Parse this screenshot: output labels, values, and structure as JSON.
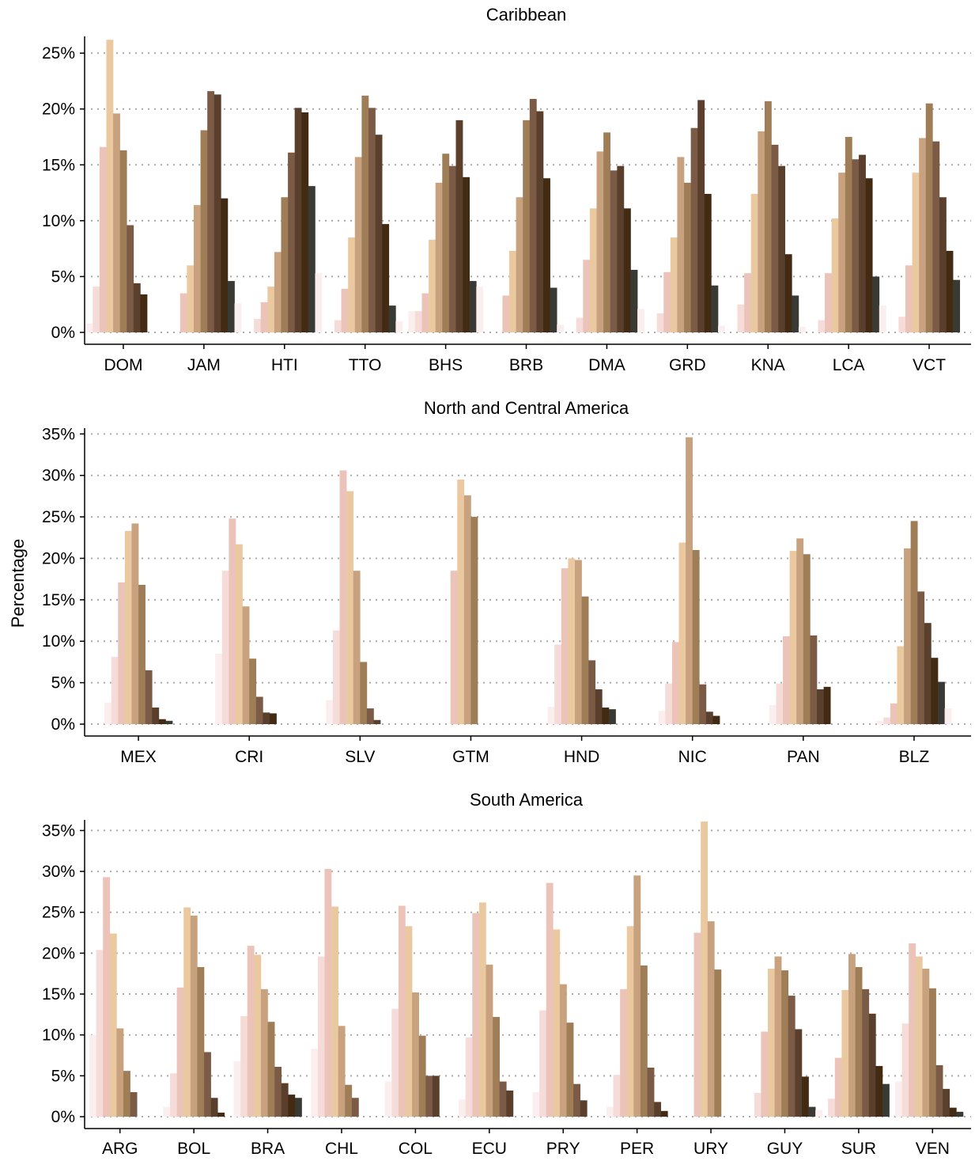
{
  "colors": [
    "#fbeeee",
    "#f6dcd9",
    "#ecc3b8",
    "#ebc9a0",
    "#c8a27e",
    "#9f7d56",
    "#7c5b46",
    "#5a3f2d",
    "#432a12",
    "#3a3a35"
  ],
  "chart_data": {
    "type": "bar",
    "ylabel": "Percentage",
    "grid": true,
    "panels": [
      {
        "title": "Caribbean",
        "ylim": [
          0,
          26.5
        ],
        "yticks": [
          0,
          5,
          10,
          15,
          20,
          25
        ],
        "ytick_labels": [
          "0%",
          "5%",
          "10%",
          "15%",
          "20%",
          "25%"
        ],
        "categories": [
          "DOM",
          "JAM",
          "HTI",
          "TTO",
          "BHS",
          "BRB",
          "DMA",
          "GRD",
          "KNA",
          "LCA",
          "VCT"
        ],
        "values": [
          [
            0.8,
            4.1,
            16.6,
            26.2,
            19.6,
            16.3,
            9.6,
            4.4,
            3.4,
            0,
            0
          ],
          [
            0,
            0,
            3.5,
            6.0,
            11.4,
            18.1,
            21.6,
            21.3,
            12.0,
            4.6,
            2.6
          ],
          [
            0,
            1.2,
            2.7,
            4.1,
            7.2,
            12.1,
            16.1,
            20.1,
            19.7,
            13.1,
            5.3
          ],
          [
            0,
            1.1,
            3.9,
            8.5,
            15.7,
            21.2,
            20.1,
            17.7,
            9.7,
            2.4,
            1.0
          ],
          [
            1.9,
            1.9,
            3.5,
            8.3,
            13.4,
            16.0,
            14.9,
            19.0,
            13.9,
            4.6,
            4.1
          ],
          [
            0,
            0,
            3.3,
            7.3,
            12.1,
            19.0,
            20.9,
            19.8,
            13.8,
            4.0,
            0.7
          ],
          [
            0,
            1.3,
            6.5,
            11.1,
            16.2,
            17.9,
            14.5,
            14.9,
            11.1,
            5.6,
            2.1
          ],
          [
            0,
            1.7,
            5.4,
            8.5,
            15.7,
            13.4,
            18.3,
            20.8,
            12.4,
            4.2,
            0.6
          ],
          [
            0,
            2.5,
            5.3,
            12.4,
            18.0,
            20.7,
            16.8,
            14.9,
            7.0,
            3.3,
            0.5
          ],
          [
            0,
            1.1,
            5.3,
            10.2,
            14.3,
            17.5,
            15.5,
            15.9,
            13.8,
            5.0,
            2.4
          ],
          [
            0,
            1.4,
            6.0,
            14.3,
            17.4,
            20.5,
            17.1,
            12.1,
            7.3,
            4.7,
            0
          ]
        ]
      },
      {
        "title": "North and Central America",
        "ylim": [
          0,
          35.7
        ],
        "yticks": [
          0,
          5,
          10,
          15,
          20,
          25,
          30,
          35
        ],
        "ytick_labels": [
          "0%",
          "5%",
          "10%",
          "15%",
          "20%",
          "25%",
          "30%",
          "35%"
        ],
        "categories": [
          "MEX",
          "CRI",
          "SLV",
          "GTM",
          "HND",
          "NIC",
          "PAN",
          "BLZ"
        ],
        "values": [
          [
            2.6,
            8.1,
            17.1,
            23.3,
            24.2,
            16.8,
            6.5,
            2.0,
            0.6,
            0.4
          ],
          [
            8.5,
            18.5,
            24.8,
            21.7,
            14.2,
            7.9,
            3.3,
            1.4,
            1.3,
            0
          ],
          [
            2.9,
            11.3,
            30.6,
            28.1,
            18.5,
            7.5,
            1.9,
            0.5,
            0,
            0
          ],
          [
            0,
            0,
            18.5,
            29.5,
            27.6,
            25.0,
            0,
            0,
            0,
            0
          ],
          [
            2.1,
            9.6,
            18.8,
            20.0,
            19.8,
            15.4,
            7.7,
            4.2,
            2.0,
            1.8
          ],
          [
            1.6,
            4.9,
            9.9,
            21.9,
            34.6,
            21.0,
            4.8,
            1.5,
            1.0,
            0
          ],
          [
            2.3,
            4.9,
            10.6,
            20.9,
            22.4,
            20.5,
            10.7,
            4.2,
            4.5,
            0
          ],
          [
            0.4,
            0.8,
            2.5,
            9.4,
            21.2,
            24.5,
            16.0,
            12.2,
            8.0,
            5.1,
            1.9
          ]
        ]
      },
      {
        "title": "South America",
        "ylim": [
          0,
          36.3
        ],
        "yticks": [
          0,
          5,
          10,
          15,
          20,
          25,
          30,
          35
        ],
        "ytick_labels": [
          "0%",
          "5%",
          "10%",
          "15%",
          "20%",
          "25%",
          "30%",
          "35%"
        ],
        "categories": [
          "ARG",
          "BOL",
          "BRA",
          "CHL",
          "COL",
          "ECU",
          "PRY",
          "PER",
          "URY",
          "GUY",
          "SUR",
          "VEN"
        ],
        "values": [
          [
            10.0,
            20.4,
            29.3,
            22.4,
            10.8,
            5.6,
            3.0,
            0,
            0
          ],
          [
            1.2,
            5.3,
            15.8,
            25.6,
            24.6,
            18.3,
            7.9,
            2.3,
            0.5
          ],
          [
            6.8,
            12.3,
            20.9,
            19.8,
            15.6,
            11.6,
            6.1,
            4.1,
            2.7,
            2.3
          ],
          [
            8.3,
            19.6,
            30.3,
            25.7,
            11.1,
            3.9,
            2.3,
            0,
            0
          ],
          [
            4.3,
            13.2,
            25.8,
            23.3,
            15.2,
            9.9,
            5.0,
            5.0,
            0
          ],
          [
            2.1,
            9.7,
            24.9,
            26.2,
            18.6,
            12.2,
            4.3,
            3.2,
            0
          ],
          [
            3.0,
            13.0,
            28.6,
            22.9,
            16.2,
            11.5,
            4.0,
            2.0,
            0
          ],
          [
            1.2,
            5.1,
            15.6,
            23.3,
            29.5,
            18.5,
            6.0,
            1.8,
            0.7
          ],
          [
            0,
            0,
            22.5,
            36.1,
            23.9,
            18.0,
            0,
            0,
            0
          ],
          [
            0,
            2.9,
            10.4,
            18.1,
            19.6,
            17.9,
            14.8,
            10.7,
            4.9,
            1.2,
            0.8
          ],
          [
            0,
            2.2,
            7.2,
            15.5,
            19.9,
            18.3,
            15.6,
            12.6,
            6.2,
            4.0,
            0
          ],
          [
            4.3,
            11.4,
            21.2,
            19.6,
            18.1,
            15.7,
            6.3,
            3.4,
            1.1,
            0.6,
            0
          ]
        ]
      }
    ]
  }
}
